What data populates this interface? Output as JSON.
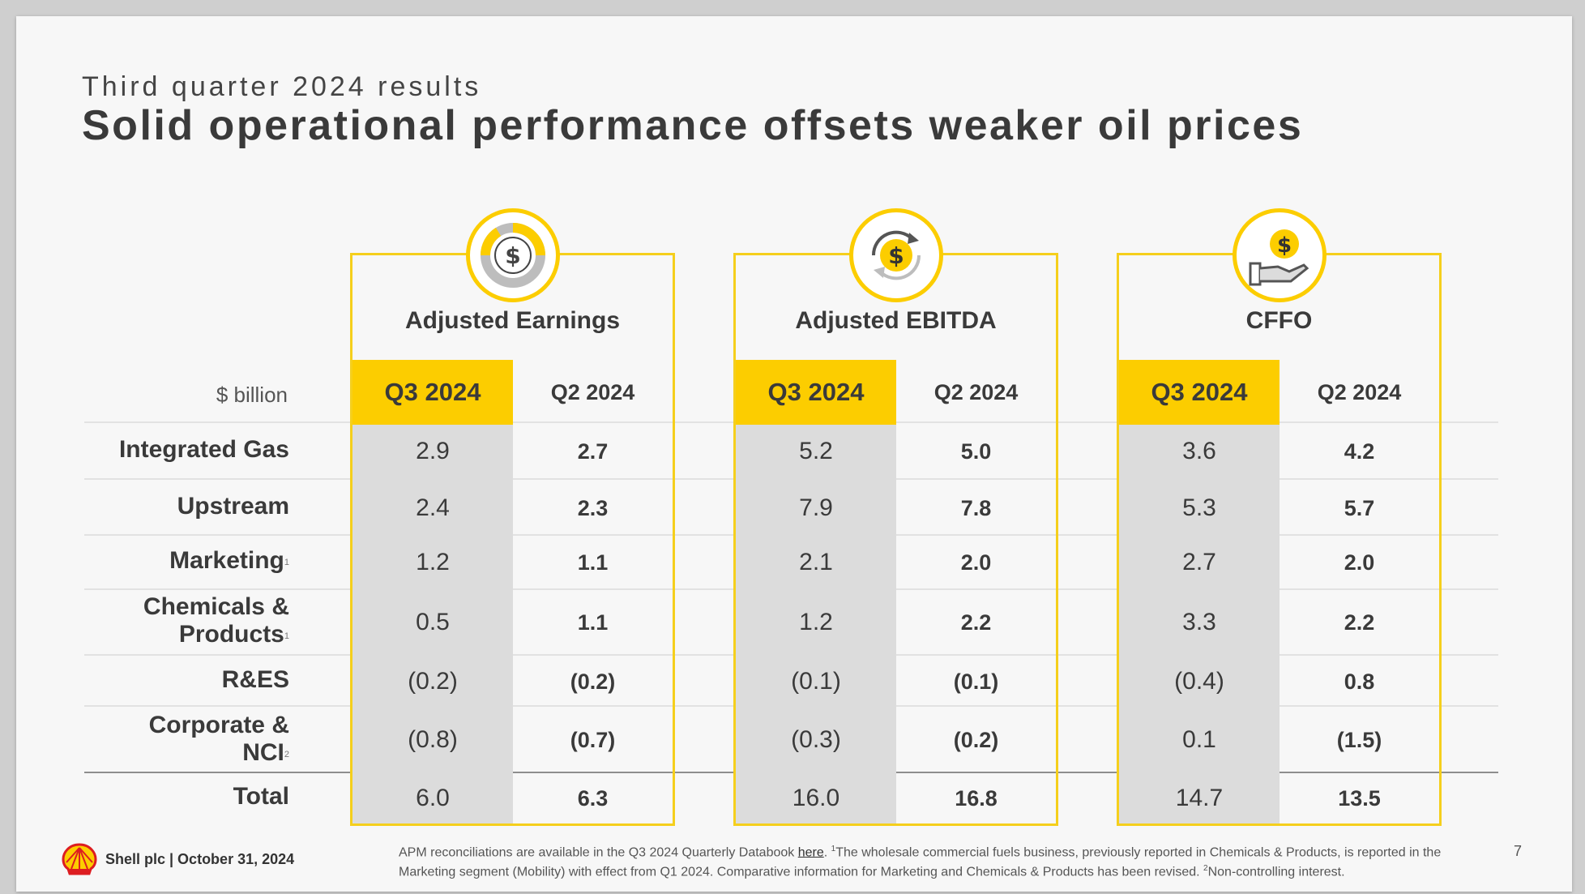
{
  "header": {
    "subtitle": "Third quarter 2024 results",
    "title": "Solid operational performance offsets weaker oil prices"
  },
  "unit_label": "$ billion",
  "rows": [
    {
      "label": "Integrated Gas",
      "sup": ""
    },
    {
      "label": "Upstream",
      "sup": ""
    },
    {
      "label": "Marketing",
      "sup": "1"
    },
    {
      "label_line1": "Chemicals &",
      "label_line2": "Products",
      "sup": "1"
    },
    {
      "label": "R&ES",
      "sup": ""
    },
    {
      "label_line1": "Corporate &",
      "label_line2": "NCI",
      "sup": "2"
    },
    {
      "label": "Total",
      "sup": ""
    }
  ],
  "groups": [
    {
      "title": "Adjusted Earnings",
      "icon": "dollar-pie-chart-icon",
      "q3_header": "Q3 2024",
      "q2_header": "Q2 2024",
      "q3": [
        "2.9",
        "2.4",
        "1.2",
        "0.5",
        "(0.2)",
        "(0.8)",
        "6.0"
      ],
      "q2": [
        "2.7",
        "2.3",
        "1.1",
        "1.1",
        "(0.2)",
        "(0.7)",
        "6.3"
      ]
    },
    {
      "title": "Adjusted EBITDA",
      "icon": "dollar-cycle-icon",
      "q3_header": "Q3 2024",
      "q2_header": "Q2 2024",
      "q3": [
        "5.2",
        "7.9",
        "2.1",
        "1.2",
        "(0.1)",
        "(0.3)",
        "16.0"
      ],
      "q2": [
        "5.0",
        "7.8",
        "2.0",
        "2.2",
        "(0.1)",
        "(0.2)",
        "16.8"
      ]
    },
    {
      "title": "CFFO",
      "icon": "dollar-hand-icon",
      "q3_header": "Q3 2024",
      "q2_header": "Q2 2024",
      "q3": [
        "3.6",
        "5.3",
        "2.7",
        "3.3",
        "(0.4)",
        "0.1",
        "14.7"
      ],
      "q2": [
        "4.2",
        "5.7",
        "2.0",
        "2.2",
        "0.8",
        "(1.5)",
        "13.5"
      ]
    }
  ],
  "footer": {
    "company": "Shell plc | October 31, 2024",
    "note_part1": "APM reconciliations are available in the Q3 2024 Quarterly Databook ",
    "note_link": "here",
    "note_part2": ". ",
    "note_sup1": "1",
    "note_part3": "The wholesale commercial fuels business, previously reported in Chemicals & Products, is reported in the Marketing segment (Mobility) with effect from Q1 2024. Comparative information for Marketing and Chemicals & Products has been revised.  ",
    "note_sup2": "2",
    "note_part4": "Non-controlling interest.",
    "page_number": "7"
  },
  "colors": {
    "accent_yellow": "#fccd00",
    "box_border": "#f5cf1c",
    "q3_column_bg": "#dcdcdc",
    "logo_red": "#dd1d21"
  }
}
